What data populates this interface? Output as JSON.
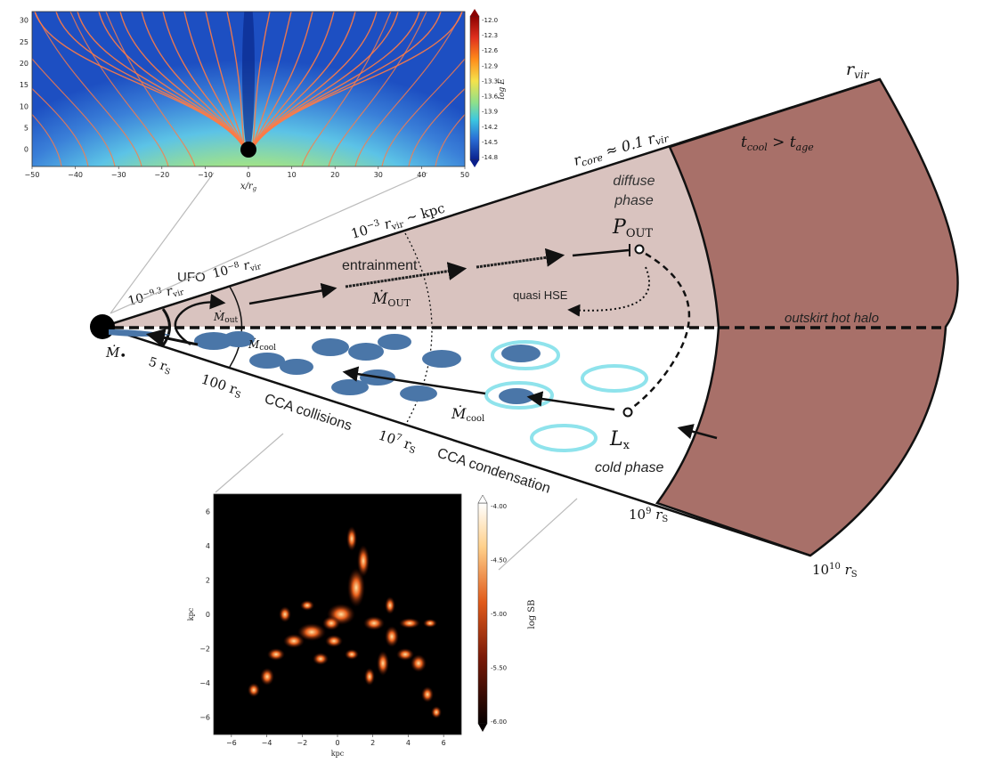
{
  "colors": {
    "hot_halo": "#a87069",
    "diffuse_region": "#d9c3bf",
    "cold_cloud": "#4a76a8",
    "cold_ring": "#8fe3ec",
    "field_line": "#ff7a45"
  },
  "main_labels": {
    "r_vir_top": "r",
    "r_vir_top_sub": "vir",
    "r_core_a": "r",
    "r_core_sub": "core",
    "r_core_b": " ≈ 0.1 r",
    "r_core_sub2": "vir",
    "tcool": "t",
    "tcool_sub": "cool",
    "tcool_gt": " > t",
    "tage_sub": "age",
    "diffuse": "diffuse",
    "phase": "phase",
    "p_out": "P",
    "p_out_sub": "OUT",
    "kpc_a": "10",
    "kpc_exp": "−3",
    "kpc_b": " r",
    "kpc_sub": "vir",
    "kpc_c": " ∼ kpc",
    "entrainment": "entrainment",
    "mdot_out_big": "Ṁ",
    "mdot_out_big_sub": "OUT",
    "quasi_hse": "quasi HSE",
    "ufo": "UFO",
    "r8_a": "10",
    "r8_exp": "−8",
    "r8_b": " r",
    "r8_sub": "vir",
    "r93_a": "10",
    "r93_exp": "−9.3",
    "r93_b": " r",
    "r93_sub": "vir",
    "mdot_out_small": "Ṁ",
    "mdot_out_small_sub": "out",
    "mdot_cool_small": "Ṁ",
    "mdot_cool_small_sub": "cool",
    "mdot_bh": "Ṁ",
    "mdot_bh_sub": "•",
    "five_rs": "5 r",
    "five_rs_sub": "S",
    "hundred_rs": "100 r",
    "hundred_rs_sub": "S",
    "cca_collisions": "CCA collisions",
    "e7_a": "10",
    "e7_exp": "7",
    "e7_b": " r",
    "e7_sub": "S",
    "mdot_cool_big": "Ṁ",
    "mdot_cool_big_sub": "cool",
    "lx": "L",
    "lx_sub": "x",
    "cca_condensation": "CCA condensation",
    "cold_phase": "cold phase",
    "e9_a": "10",
    "e9_exp": "9",
    "e9_b": " r",
    "e9_sub": "S",
    "e10_a": "10",
    "e10_exp": "10",
    "e10_b": " r",
    "e10_sub": "S",
    "outskirt": "outskirt hot halo"
  },
  "inset_top": {
    "x_ticks": [
      "−50",
      "−40",
      "−30",
      "−20",
      "−10",
      "0",
      "10",
      "20",
      "30",
      "40",
      "50"
    ],
    "y_ticks": [
      "0",
      "5",
      "10",
      "15",
      "20",
      "25",
      "30"
    ],
    "xlabel": "x/r",
    "xlabel_sub": "g",
    "cbar_ticks": [
      "-12.0",
      "-12.3",
      "-12.6",
      "-12.9",
      "-13.3",
      "-13.6",
      "-13.9",
      "-14.2",
      "-14.5",
      "-14.8"
    ],
    "cbar_label": "log Ė",
    "xlim": [
      -50,
      50
    ],
    "ylim": [
      -4,
      32
    ]
  },
  "inset_bottom": {
    "x_ticks": [
      "−6",
      "−4",
      "−2",
      "0",
      "2",
      "4",
      "6"
    ],
    "y_ticks": [
      "6",
      "4",
      "2",
      "0",
      "−2",
      "−4",
      "−6"
    ],
    "xlabel": "kpc",
    "ylabel": "kpc",
    "cbar_ticks": [
      "-4.00",
      "-4.50",
      "-5.00",
      "-5.50",
      "-6.00"
    ],
    "cbar_label": "log SB",
    "xlim": [
      -7,
      7
    ],
    "ylim": [
      -7,
      7
    ]
  }
}
